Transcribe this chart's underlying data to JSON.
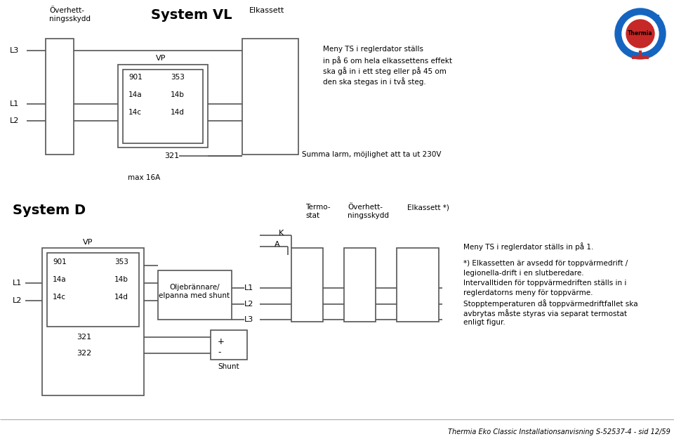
{
  "bg_color": "#ffffff",
  "line_color": "#555555",
  "title_system_vl": "System VL",
  "title_system_d": "System D",
  "label_elkassett_vl": "Elkassett",
  "label_vp": "VP",
  "label_overhett_top": "Överhett-\nningsskydd",
  "label_termostat": "Termo-\nstat",
  "label_overhett2": "Överhett-\nningsskydd",
  "label_elkassett2": "Elkassett *)",
  "label_oljebrannare": "Oljebrännare/\nelpanna med shunt",
  "label_shunt": "Shunt",
  "label_meny1_line1": "Meny TS i reglerdator ställs",
  "label_meny1_line2": "in på 6 om hela elkassettens effekt",
  "label_meny1_line3": "ska gå in i ett steg eller på 45 om",
  "label_meny1_line4": "den ska stegas in i två steg.",
  "label_summa": "Summa larm, möjlighet att ta ut 230V",
  "label_max16a": "max 16A",
  "label_meny2": "Meny TS i reglerdator ställs in på 1.",
  "label_footnote_line1": "*) Elkassetten är avsedd för toppvärmedrift /",
  "label_footnote_line2": "legionella-drift i en slutberedare.",
  "label_footnote_line3": "Intervalltiden för toppvärmedriften ställs in i",
  "label_footnote_line4": "reglerdatorns meny för toppvärme.",
  "label_footnote_line5": "Stopptemperaturen då toppvärmedriftfallet ska",
  "label_footnote_line6": "avbrytas måste styras via separat termostat",
  "label_footnote_line7": "enligt figur.",
  "label_thermia_footer": "Thermia Eko Classic Installationsanvisning S-52537-4 - sid 12/59",
  "label_K": "K",
  "label_A": "A",
  "label_L1": "L1",
  "label_L2": "L2",
  "label_L3": "L3",
  "label_plus": "+",
  "label_minus": "-",
  "label_321": "321",
  "label_322": "322"
}
